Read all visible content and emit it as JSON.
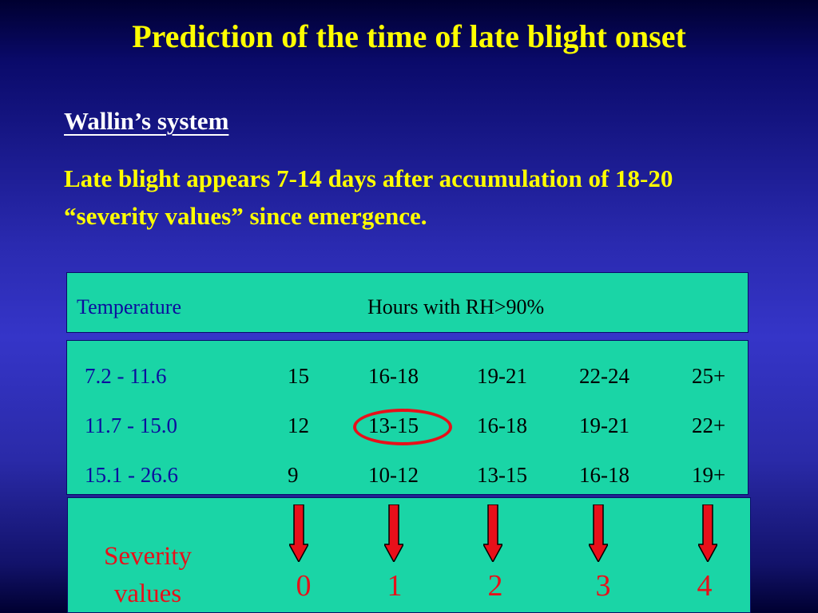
{
  "slide": {
    "title": "Prediction of the time of late blight onset",
    "subheading": "Wallin’s system",
    "body": "Late blight appears 7-14 days after accumulation of 18-20 “severity values” since emergence."
  },
  "table": {
    "header_temperature": "Temperature",
    "header_hours": "Hours with RH>90%",
    "rows": [
      {
        "temp": "7.2 - 11.6",
        "values": [
          "15",
          "16-18",
          "19-21",
          "22-24",
          "25+"
        ]
      },
      {
        "temp": "11.7 - 15.0",
        "values": [
          "12",
          "13-15",
          "16-18",
          "19-21",
          "22+"
        ]
      },
      {
        "temp": "15.1 - 26.6",
        "values": [
          "9",
          "10-12",
          "13-15",
          "16-18",
          "19+"
        ]
      }
    ],
    "highlighted_cell": "13-15"
  },
  "severity": {
    "label_line1": "Severity",
    "label_line2": "values",
    "values": [
      "0",
      "1",
      "2",
      "3",
      "4"
    ]
  },
  "colors": {
    "title": "#ffff00",
    "table_bg": "#1ad5a6",
    "temperature_text": "#0c0c9e",
    "accent_red": "#e8101a"
  }
}
